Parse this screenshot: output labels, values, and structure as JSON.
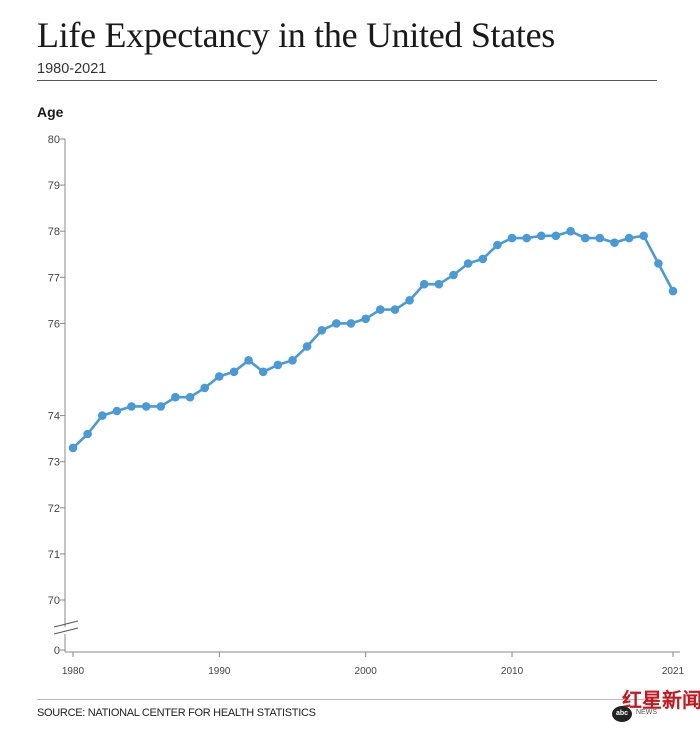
{
  "chart_data": {
    "type": "line",
    "title": "Life Expectancy in the United States",
    "subtitle": "1980-2021",
    "ylabel": "Age",
    "xlabel": "",
    "source": "SOURCE: NATIONAL CENTER FOR HEALTH STATISTICS",
    "ylim": [
      70,
      80
    ],
    "y_ticks": [
      {
        "value": 80,
        "label": "80"
      },
      {
        "value": 79,
        "label": "79"
      },
      {
        "value": 78,
        "label": "78"
      },
      {
        "value": 77,
        "label": "77"
      },
      {
        "value": 76,
        "label": "76"
      },
      {
        "value": 74,
        "label": "74"
      },
      {
        "value": 73,
        "label": "73"
      },
      {
        "value": 72,
        "label": "72"
      },
      {
        "value": 71,
        "label": "71"
      },
      {
        "value": 70,
        "label": "70"
      }
    ],
    "axis_break_label": "0",
    "x_ticks": [
      {
        "value": 1980,
        "label": "1980"
      },
      {
        "value": 1990,
        "label": "1990"
      },
      {
        "value": 2000,
        "label": "2000"
      },
      {
        "value": 2010,
        "label": "2010"
      },
      {
        "value": 2021,
        "label": "2021"
      }
    ],
    "xlim": [
      1980,
      2021
    ],
    "line_color": "#4a9ad8",
    "series": [
      {
        "name": "Life expectancy",
        "x": [
          1980,
          1981,
          1982,
          1983,
          1984,
          1985,
          1986,
          1987,
          1988,
          1989,
          1990,
          1991,
          1992,
          1993,
          1994,
          1995,
          1996,
          1997,
          1998,
          1999,
          2000,
          2001,
          2002,
          2003,
          2004,
          2005,
          2006,
          2007,
          2008,
          2009,
          2010,
          2011,
          2012,
          2013,
          2014,
          2015,
          2016,
          2017,
          2018,
          2019,
          2020,
          2021
        ],
        "values": [
          73.3,
          73.6,
          74.0,
          74.1,
          74.2,
          74.2,
          74.2,
          74.4,
          74.4,
          74.6,
          74.85,
          74.95,
          75.2,
          74.95,
          75.1,
          75.2,
          75.5,
          75.85,
          76.0,
          76.0,
          76.1,
          76.3,
          76.3,
          76.5,
          76.85,
          76.85,
          77.05,
          77.3,
          77.4,
          77.7,
          77.85,
          77.85,
          77.9,
          77.9,
          78.0,
          77.85,
          77.85,
          77.75,
          77.85,
          77.9,
          77.3,
          76.7
        ]
      }
    ]
  },
  "watermark": {
    "main": "红星新闻",
    "badge": "abc",
    "sub": "NEWS"
  }
}
